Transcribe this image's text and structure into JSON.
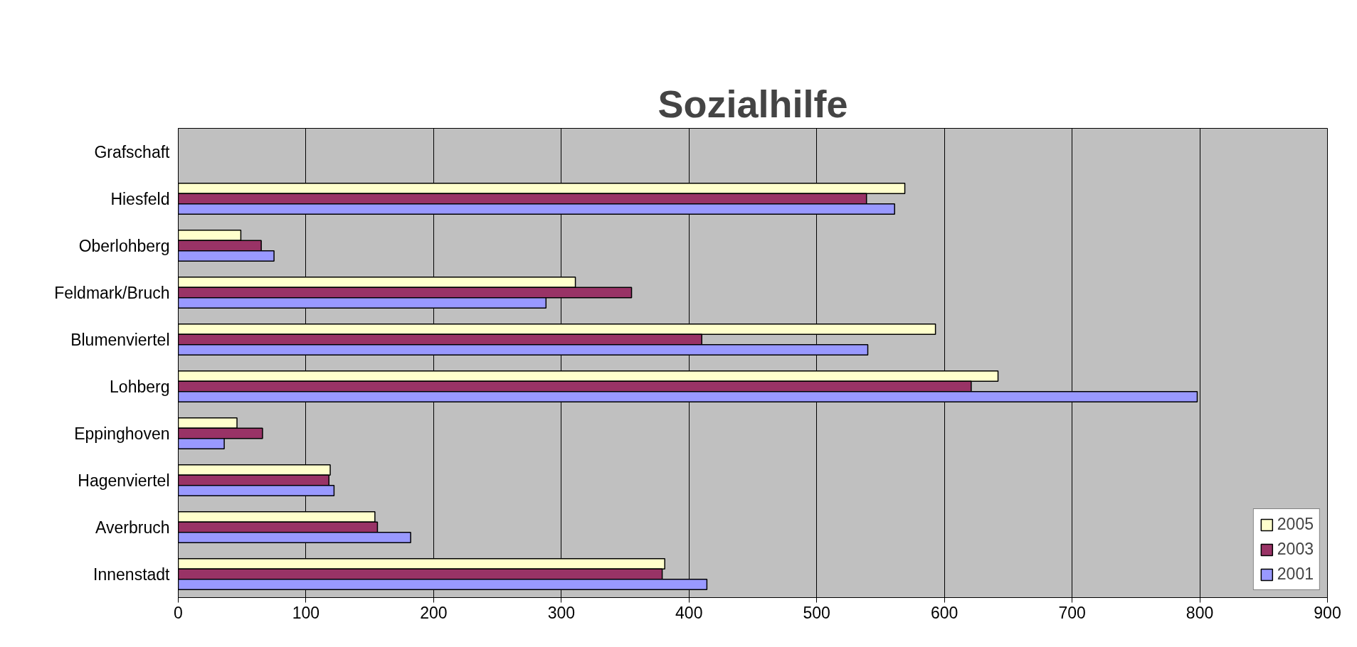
{
  "chart_data": {
    "type": "bar",
    "orientation": "horizontal",
    "title": "Sozialhilfe",
    "categories": [
      "Grafschaft",
      "Hiesfeld",
      "Oberlohberg",
      "Feldmark/Bruch",
      "Blumenviertel",
      "Lohberg",
      "Eppinghoven",
      "Hagenviertel",
      "Averbruch",
      "Innenstadt"
    ],
    "series": [
      {
        "name": "2005",
        "color": "#ffffcc",
        "values": [
          null,
          569,
          49,
          311,
          593,
          642,
          46,
          119,
          154,
          381
        ]
      },
      {
        "name": "2003",
        "color": "#993366",
        "values": [
          null,
          539,
          65,
          355,
          410,
          621,
          66,
          118,
          156,
          379
        ]
      },
      {
        "name": "2001",
        "color": "#9999ff",
        "values": [
          null,
          561,
          75,
          288,
          540,
          798,
          36,
          122,
          182,
          414
        ]
      }
    ],
    "xlim": [
      0,
      900
    ],
    "xticks": [
      0,
      100,
      200,
      300,
      400,
      500,
      600,
      700,
      800,
      900
    ],
    "grid": "x",
    "legend": "bottom right"
  }
}
